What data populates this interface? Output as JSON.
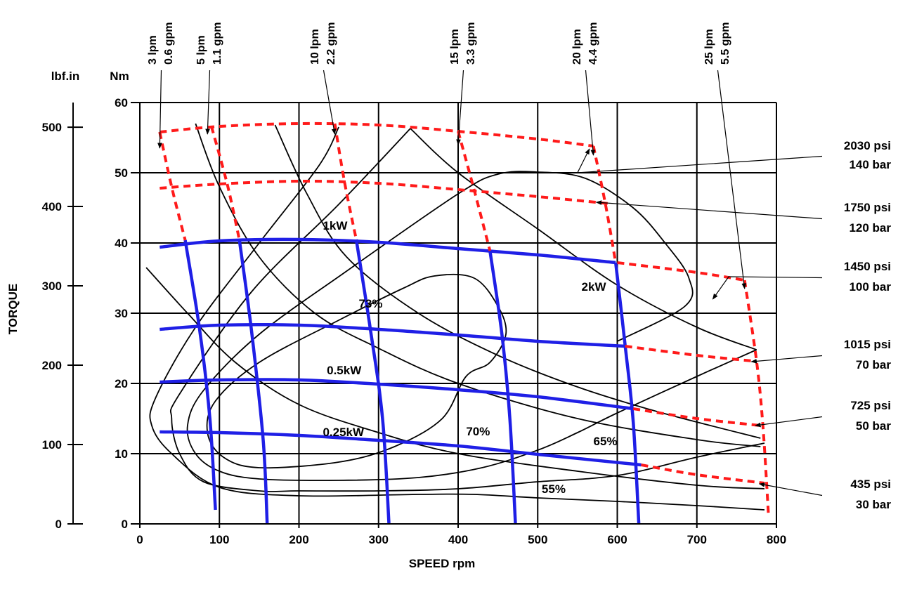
{
  "chart_data": {
    "type": "line",
    "xlabel": "SPEED rpm",
    "ylabel": "TORQUE",
    "xlim": [
      0,
      800
    ],
    "ylim": [
      0,
      60
    ],
    "grid": true,
    "x_ticks": [
      "0",
      "100",
      "200",
      "300",
      "400",
      "500",
      "600",
      "700",
      "800"
    ],
    "y_ticks_nm": [
      "0",
      "10",
      "20",
      "30",
      "40",
      "50",
      "60"
    ],
    "y_ticks_lbf": [
      "0",
      "100",
      "200",
      "300",
      "400",
      "500"
    ],
    "y_unit_nm": "Nm",
    "y_unit_lbf": "lbf.in",
    "colors": {
      "pressure_red": "#ff1a1a",
      "torque_blue": "#1f1fe6",
      "contour": "#000000"
    },
    "pressure_lines": [
      {
        "psi": "2030 psi",
        "bar": "140 bar",
        "points": [
          [
            25,
            55.8
          ],
          [
            100,
            56.6
          ],
          [
            200,
            57.0
          ],
          [
            300,
            56.8
          ],
          [
            400,
            55.9
          ],
          [
            500,
            54.8
          ],
          [
            570,
            53.8
          ]
        ]
      },
      {
        "psi": "1750 psi",
        "bar": "120 bar",
        "points": [
          [
            25,
            47.8
          ],
          [
            100,
            48.4
          ],
          [
            200,
            48.8
          ],
          [
            300,
            48.5
          ],
          [
            400,
            47.6
          ],
          [
            500,
            46.6
          ],
          [
            590,
            45.6
          ]
        ]
      },
      {
        "psi": "1450 psi",
        "bar": "100 bar",
        "points": [
          [
            600,
            37.2
          ],
          [
            700,
            35.8
          ],
          [
            760,
            34.7
          ]
        ]
      },
      {
        "psi": "1015 psi",
        "bar": "70 bar",
        "points": [
          [
            610,
            25.3
          ],
          [
            700,
            24.0
          ],
          [
            770,
            23.2
          ]
        ]
      },
      {
        "psi": "725 psi",
        "bar": "50 bar",
        "points": [
          [
            620,
            16.4
          ],
          [
            700,
            15.0
          ],
          [
            780,
            14.0
          ]
        ]
      },
      {
        "psi": "435 psi",
        "bar": "30 bar",
        "points": [
          [
            630,
            8.4
          ],
          [
            700,
            7.0
          ],
          [
            785,
            5.8
          ]
        ]
      }
    ],
    "flow_lines": [
      {
        "lpm": "3 lpm",
        "gpm": "0.6 gpm",
        "points": [
          [
            25,
            55.8
          ],
          [
            40,
            48.0
          ],
          [
            57,
            40.4
          ]
        ]
      },
      {
        "lpm": "5 lpm",
        "gpm": "1.1 gpm",
        "points": [
          [
            90,
            56.6
          ],
          [
            110,
            48.3
          ],
          [
            125,
            40.5
          ]
        ]
      },
      {
        "lpm": "10 lpm",
        "gpm": "2.2 gpm",
        "points": [
          [
            245,
            57.0
          ],
          [
            257,
            48.8
          ],
          [
            272,
            40.5
          ]
        ]
      },
      {
        "lpm": "15 lpm",
        "gpm": "3.3 gpm",
        "points": [
          [
            400,
            55.9
          ],
          [
            420,
            47.6
          ],
          [
            440,
            38.9
          ]
        ]
      },
      {
        "lpm": "20 lpm",
        "gpm": "4.4 gpm",
        "points": [
          [
            570,
            53.8
          ],
          [
            585,
            45.6
          ],
          [
            598,
            37.2
          ]
        ]
      },
      {
        "lpm": "25 lpm",
        "gpm": "5.5 gpm",
        "points": [
          [
            760,
            34.7
          ],
          [
            775,
            23.2
          ],
          [
            783,
            14.0
          ],
          [
            790,
            1.2
          ]
        ]
      }
    ],
    "torque_curves": [
      {
        "points": [
          [
            25,
            39.4
          ],
          [
            100,
            40.3
          ],
          [
            200,
            40.5
          ],
          [
            300,
            40.1
          ],
          [
            400,
            39.2
          ],
          [
            500,
            38.3
          ],
          [
            598,
            37.2
          ]
        ]
      },
      {
        "points": [
          [
            25,
            27.7
          ],
          [
            100,
            28.3
          ],
          [
            200,
            28.3
          ],
          [
            300,
            27.7
          ],
          [
            400,
            26.9
          ],
          [
            500,
            26.0
          ],
          [
            610,
            25.3
          ]
        ]
      },
      {
        "points": [
          [
            25,
            20.2
          ],
          [
            100,
            20.5
          ],
          [
            200,
            20.5
          ],
          [
            300,
            19.9
          ],
          [
            400,
            19.1
          ],
          [
            500,
            18.1
          ],
          [
            620,
            16.4
          ]
        ]
      },
      {
        "points": [
          [
            25,
            13.1
          ],
          [
            100,
            13.0
          ],
          [
            200,
            12.6
          ],
          [
            300,
            11.9
          ],
          [
            400,
            11.1
          ],
          [
            500,
            9.9
          ],
          [
            630,
            8.4
          ]
        ]
      }
    ],
    "speed_curves": [
      {
        "points": [
          [
            57,
            40.4
          ],
          [
            75,
            27.8
          ],
          [
            88,
            15.0
          ],
          [
            95,
            2.0
          ]
        ]
      },
      {
        "points": [
          [
            125,
            40.5
          ],
          [
            140,
            27.8
          ],
          [
            155,
            12.0
          ],
          [
            160,
            0.1
          ]
        ]
      },
      {
        "points": [
          [
            272,
            40.5
          ],
          [
            290,
            27.5
          ],
          [
            305,
            15.0
          ],
          [
            313,
            0.1
          ]
        ]
      },
      {
        "points": [
          [
            440,
            38.9
          ],
          [
            455,
            27.0
          ],
          [
            465,
            15.0
          ],
          [
            472,
            0.1
          ]
        ]
      },
      {
        "points": [
          [
            598,
            37.2
          ],
          [
            610,
            25.3
          ],
          [
            620,
            14.5
          ],
          [
            627,
            0.1
          ]
        ]
      }
    ],
    "power_curves": [
      {
        "label": "2kW",
        "points": [
          [
            340,
            56.3
          ],
          [
            400,
            50.0
          ],
          [
            500,
            42.0
          ],
          [
            600,
            34.0
          ],
          [
            700,
            28.0
          ],
          [
            775,
            24.8
          ]
        ]
      },
      {
        "label": "1kW",
        "points": [
          [
            170,
            56.8
          ],
          [
            210,
            47.0
          ],
          [
            260,
            38.0
          ],
          [
            350,
            30.0
          ],
          [
            450,
            24.0
          ],
          [
            550,
            19.5
          ],
          [
            650,
            16.0
          ],
          [
            780,
            12.2
          ]
        ]
      },
      {
        "label": "0.5kW",
        "points": [
          [
            70,
            57.0
          ],
          [
            100,
            48.0
          ],
          [
            150,
            38.0
          ],
          [
            220,
            30.0
          ],
          [
            300,
            25.0
          ],
          [
            400,
            20.0
          ],
          [
            550,
            15.0
          ],
          [
            700,
            12.0
          ],
          [
            780,
            11.0
          ]
        ]
      },
      {
        "label": "0.25kW",
        "points": [
          [
            8,
            36.5
          ],
          [
            60,
            30.0
          ],
          [
            120,
            23.0
          ],
          [
            200,
            17.0
          ],
          [
            300,
            13.0
          ],
          [
            400,
            10.0
          ],
          [
            550,
            7.5
          ],
          [
            700,
            5.5
          ],
          [
            785,
            5.0
          ]
        ]
      }
    ],
    "efficiency_contours": [
      {
        "label": "55%",
        "points": [
          [
            785,
            2.0
          ],
          [
            700,
            2.6
          ],
          [
            600,
            3.2
          ],
          [
            500,
            3.7
          ],
          [
            420,
            4.2
          ],
          [
            350,
            4.2
          ],
          [
            200,
            4.0
          ],
          [
            100,
            5.2
          ],
          [
            40,
            10.0
          ],
          [
            15,
            14.0
          ],
          [
            20,
            18.0
          ],
          [
            70,
            28.0
          ],
          [
            150,
            40.0
          ],
          [
            225,
            51.0
          ],
          [
            250,
            56.5
          ]
        ]
      },
      {
        "label": "65%",
        "points": [
          [
            785,
            11.5
          ],
          [
            700,
            9.5
          ],
          [
            620,
            7.3
          ],
          [
            570,
            6.5
          ],
          [
            500,
            6.0
          ],
          [
            400,
            5.0
          ],
          [
            300,
            4.7
          ],
          [
            200,
            4.7
          ],
          [
            150,
            4.7
          ],
          [
            80,
            6.0
          ],
          [
            50,
            10.0
          ],
          [
            40,
            15.0
          ],
          [
            50,
            18.5
          ],
          [
            140,
            33.0
          ],
          [
            250,
            45.5
          ],
          [
            340,
            56.3
          ]
        ]
      },
      {
        "label": "70%",
        "points": [
          [
            775,
            24.8
          ],
          [
            700,
            21.0
          ],
          [
            600,
            15.8
          ],
          [
            550,
            13.0
          ],
          [
            500,
            10.5
          ],
          [
            430,
            8.0
          ],
          [
            350,
            6.6
          ],
          [
            250,
            6.2
          ],
          [
            150,
            6.4
          ],
          [
            100,
            7.5
          ],
          [
            70,
            10.0
          ],
          [
            60,
            14.0
          ],
          [
            80,
            19.0
          ],
          [
            150,
            27.0
          ],
          [
            260,
            36.0
          ],
          [
            400,
            47.0
          ],
          [
            450,
            49.8
          ],
          [
            500,
            50.1
          ],
          [
            560,
            49.2
          ],
          [
            620,
            45.0
          ],
          [
            660,
            40.0
          ],
          [
            690,
            35.0
          ],
          [
            685,
            31.0
          ],
          [
            600,
            26.0
          ]
        ]
      },
      {
        "label": "73%",
        "points": [
          [
            410,
            21.0
          ],
          [
            380,
            15.0
          ],
          [
            320,
            11.0
          ],
          [
            250,
            8.8
          ],
          [
            150,
            8.0
          ],
          [
            105,
            9.5
          ],
          [
            85,
            13.0
          ],
          [
            95,
            17.5
          ],
          [
            150,
            23.0
          ],
          [
            250,
            29.0
          ],
          [
            330,
            33.5
          ],
          [
            370,
            35.3
          ],
          [
            420,
            35.0
          ],
          [
            450,
            31.0
          ],
          [
            460,
            27.0
          ],
          [
            440,
            23.0
          ]
        ]
      }
    ],
    "annotations": [
      {
        "text": "1kW",
        "x": 230,
        "y": 42.5
      },
      {
        "text": "2kW",
        "x": 555,
        "y": 33.8
      },
      {
        "text": "0.5kW",
        "x": 235,
        "y": 21.9
      },
      {
        "text": "0.25kW",
        "x": 230,
        "y": 13.1
      },
      {
        "text": "73%",
        "x": 275,
        "y": 31.4
      },
      {
        "text": "70%",
        "x": 410,
        "y": 13.2
      },
      {
        "text": "65%",
        "x": 570,
        "y": 11.8
      },
      {
        "text": "55%",
        "x": 505,
        "y": 5.0
      }
    ]
  }
}
